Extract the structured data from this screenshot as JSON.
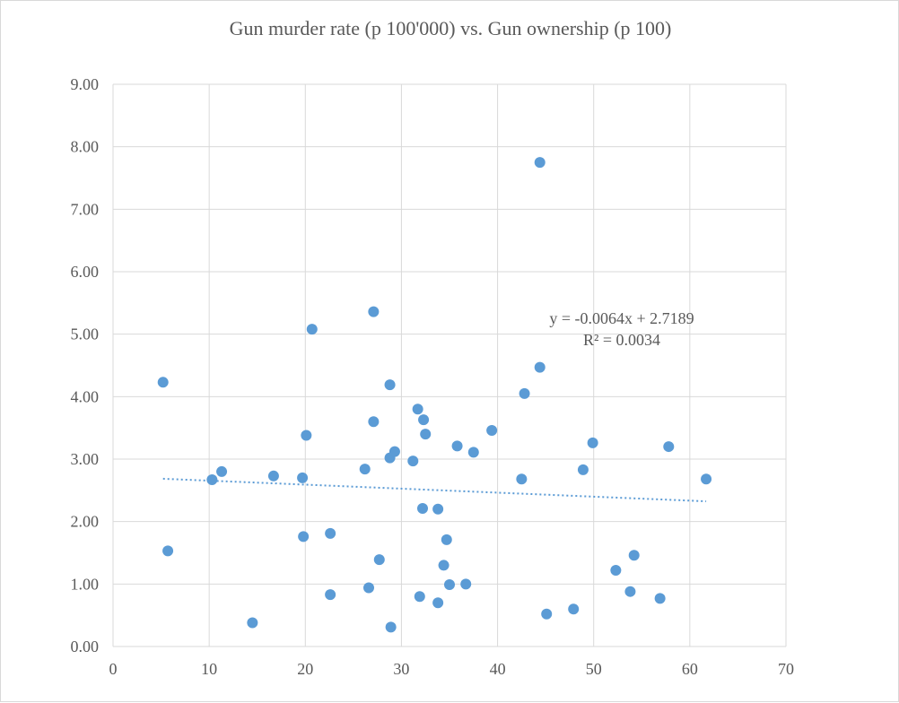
{
  "chart_data": {
    "type": "scatter",
    "title": "Gun murder rate (p 100'000)  vs. Gun ownership (p 100)",
    "xlabel": "",
    "ylabel": "",
    "xlim": [
      0,
      70
    ],
    "ylim": [
      0,
      9
    ],
    "x_ticks": [
      0,
      10,
      20,
      30,
      40,
      50,
      60,
      70
    ],
    "y_ticks": [
      "0.00",
      "1.00",
      "2.00",
      "3.00",
      "4.00",
      "5.00",
      "6.00",
      "7.00",
      "8.00",
      "9.00"
    ],
    "grid": true,
    "legend": "none",
    "point_color": "#5b9bd5",
    "trendline_color": "#5b9bd5",
    "series": [
      {
        "name": "Gun murder rate",
        "points": [
          [
            5.2,
            4.23
          ],
          [
            5.7,
            1.53
          ],
          [
            10.3,
            2.67
          ],
          [
            11.3,
            2.8
          ],
          [
            14.5,
            0.38
          ],
          [
            16.7,
            2.73
          ],
          [
            19.7,
            2.7
          ],
          [
            19.8,
            1.76
          ],
          [
            20.1,
            3.38
          ],
          [
            20.7,
            5.08
          ],
          [
            22.6,
            1.81
          ],
          [
            22.6,
            0.83
          ],
          [
            26.2,
            2.84
          ],
          [
            26.6,
            0.94
          ],
          [
            27.1,
            5.36
          ],
          [
            27.1,
            3.6
          ],
          [
            27.7,
            1.39
          ],
          [
            28.8,
            4.19
          ],
          [
            28.8,
            3.02
          ],
          [
            28.9,
            0.31
          ],
          [
            29.3,
            3.12
          ],
          [
            31.2,
            2.97
          ],
          [
            31.7,
            3.8
          ],
          [
            31.9,
            0.8
          ],
          [
            32.2,
            2.21
          ],
          [
            32.3,
            3.63
          ],
          [
            32.5,
            3.4
          ],
          [
            33.8,
            2.2
          ],
          [
            33.8,
            0.7
          ],
          [
            34.4,
            1.3
          ],
          [
            34.7,
            1.71
          ],
          [
            35.0,
            0.99
          ],
          [
            35.8,
            3.21
          ],
          [
            36.7,
            1.0
          ],
          [
            37.5,
            3.11
          ],
          [
            39.4,
            3.46
          ],
          [
            42.5,
            2.68
          ],
          [
            42.8,
            4.05
          ],
          [
            44.4,
            7.75
          ],
          [
            44.4,
            4.47
          ],
          [
            45.1,
            0.52
          ],
          [
            47.9,
            0.6
          ],
          [
            48.9,
            2.83
          ],
          [
            49.9,
            3.26
          ],
          [
            52.3,
            1.22
          ],
          [
            53.8,
            0.88
          ],
          [
            54.2,
            1.46
          ],
          [
            56.9,
            0.77
          ],
          [
            57.8,
            3.2
          ],
          [
            61.7,
            2.68
          ]
        ]
      }
    ],
    "trendline": {
      "slope": -0.0064,
      "intercept": 2.7189,
      "x_range": [
        5.2,
        61.7
      ],
      "equation": "y = -0.0064x + 2.7189",
      "r_squared": "R² = 0.0034"
    }
  }
}
